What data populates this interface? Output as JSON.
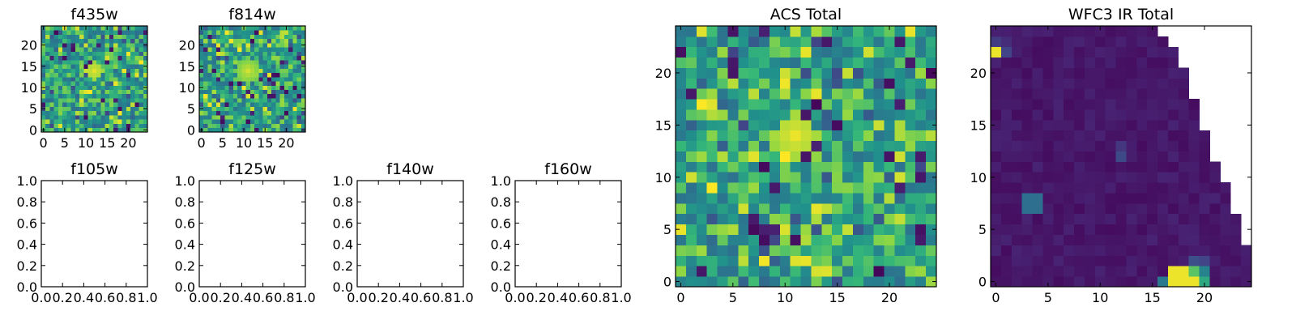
{
  "chart_data": [
    {
      "type": "heatmap",
      "title": "f435w",
      "colormap": "viridis",
      "grid_size": [
        25,
        25
      ],
      "xlim": [
        -0.5,
        24.5
      ],
      "ylim": [
        -0.5,
        24.5
      ],
      "x_ticks": [
        0,
        5,
        10,
        15,
        20
      ],
      "y_ticks": [
        0,
        5,
        10,
        15,
        20
      ],
      "x_tick_labels": [
        "0",
        "5",
        "10",
        "15",
        "20"
      ],
      "y_tick_labels": [
        "0",
        "5",
        "10",
        "15",
        "20"
      ],
      "value_range": [
        0,
        1
      ],
      "mean_value": 0.66,
      "blobs": [
        {
          "x": 12,
          "y": 14,
          "radius": 2,
          "value": 0.97
        }
      ],
      "noise_seed": 435
    },
    {
      "type": "heatmap",
      "title": "f814w",
      "colormap": "viridis",
      "grid_size": [
        25,
        25
      ],
      "xlim": [
        -0.5,
        24.5
      ],
      "ylim": [
        -0.5,
        24.5
      ],
      "x_ticks": [
        0,
        5,
        10,
        15,
        20
      ],
      "y_ticks": [
        0,
        5,
        10,
        15,
        20
      ],
      "x_tick_labels": [
        "0",
        "5",
        "10",
        "15",
        "20"
      ],
      "y_tick_labels": [
        "0",
        "5",
        "10",
        "15",
        "20"
      ],
      "value_range": [
        0,
        1
      ],
      "mean_value": 0.68,
      "blobs": [
        {
          "x": 11,
          "y": 14,
          "radius": 3,
          "value": 0.95
        }
      ],
      "noise_seed": 814
    },
    {
      "type": "empty",
      "title": "f105w",
      "xlim": [
        0,
        1
      ],
      "ylim": [
        0,
        1
      ],
      "x_ticks": [
        0,
        0.2,
        0.4,
        0.6,
        0.8,
        1.0
      ],
      "y_ticks": [
        0,
        0.2,
        0.4,
        0.6,
        0.8,
        1.0
      ],
      "x_tick_labels": [
        "0.0",
        "0.2",
        "0.4",
        "0.6",
        "0.8",
        "1.0"
      ],
      "y_tick_labels": [
        "0.0",
        "0.2",
        "0.4",
        "0.6",
        "0.8",
        "1.0"
      ]
    },
    {
      "type": "empty",
      "title": "f125w",
      "xlim": [
        0,
        1
      ],
      "ylim": [
        0,
        1
      ],
      "x_ticks": [
        0,
        0.2,
        0.4,
        0.6,
        0.8,
        1.0
      ],
      "y_ticks": [
        0,
        0.2,
        0.4,
        0.6,
        0.8,
        1.0
      ],
      "x_tick_labels": [
        "0.0",
        "0.2",
        "0.4",
        "0.6",
        "0.8",
        "1.0"
      ],
      "y_tick_labels": [
        "0.0",
        "0.2",
        "0.4",
        "0.6",
        "0.8",
        "1.0"
      ]
    },
    {
      "type": "empty",
      "title": "f140w",
      "xlim": [
        0,
        1
      ],
      "ylim": [
        0,
        1
      ],
      "x_ticks": [
        0,
        0.2,
        0.4,
        0.6,
        0.8,
        1.0
      ],
      "y_ticks": [
        0,
        0.2,
        0.4,
        0.6,
        0.8,
        1.0
      ],
      "x_tick_labels": [
        "0.0",
        "0.2",
        "0.4",
        "0.6",
        "0.8",
        "1.0"
      ],
      "y_tick_labels": [
        "0.0",
        "0.2",
        "0.4",
        "0.6",
        "0.8",
        "1.0"
      ]
    },
    {
      "type": "empty",
      "title": "f160w",
      "xlim": [
        0,
        1
      ],
      "ylim": [
        0,
        1
      ],
      "x_ticks": [
        0,
        0.2,
        0.4,
        0.6,
        0.8,
        1.0
      ],
      "y_ticks": [
        0,
        0.2,
        0.4,
        0.6,
        0.8,
        1.0
      ],
      "x_tick_labels": [
        "0.0",
        "0.2",
        "0.4",
        "0.6",
        "0.8",
        "1.0"
      ],
      "y_tick_labels": [
        "0.0",
        "0.2",
        "0.4",
        "0.6",
        "0.8",
        "1.0"
      ]
    },
    {
      "type": "heatmap",
      "title": "ACS Total",
      "colormap": "viridis",
      "grid_size": [
        25,
        25
      ],
      "xlim": [
        -0.5,
        24.5
      ],
      "ylim": [
        -0.5,
        24.5
      ],
      "x_ticks": [
        0,
        5,
        10,
        15,
        20
      ],
      "y_ticks": [
        0,
        5,
        10,
        15,
        20
      ],
      "x_tick_labels": [
        "0",
        "5",
        "10",
        "15",
        "20"
      ],
      "y_tick_labels": [
        "0",
        "5",
        "10",
        "15",
        "20"
      ],
      "value_range": [
        0,
        1
      ],
      "mean_value": 0.68,
      "blobs": [
        {
          "x": 11,
          "y": 14,
          "radius": 2,
          "value": 0.98
        }
      ],
      "noise_seed": 1234
    },
    {
      "type": "heatmap",
      "title": "WFC3 IR Total",
      "colormap": "viridis",
      "grid_size": [
        25,
        25
      ],
      "xlim": [
        -0.5,
        24.5
      ],
      "ylim": [
        -0.5,
        24.5
      ],
      "x_ticks": [
        0,
        5,
        10,
        15,
        20
      ],
      "y_ticks": [
        0,
        5,
        10,
        15,
        20
      ],
      "x_tick_labels": [
        "0",
        "5",
        "10",
        "15",
        "20"
      ],
      "y_tick_labels": [
        "0",
        "5",
        "10",
        "15",
        "20"
      ],
      "value_range": [
        0,
        1
      ],
      "mean_value": 0.08,
      "noise_amplitude": 0.04,
      "bright_cells": [
        {
          "x": 0,
          "y": 22,
          "value": 0.98
        },
        {
          "x": 0,
          "y": 23,
          "value": 0.22
        },
        {
          "x": 1,
          "y": 22,
          "value": 0.25
        },
        {
          "x": 1,
          "y": 23,
          "value": 0.16
        },
        {
          "x": 3,
          "y": 8,
          "value": 0.45
        },
        {
          "x": 4,
          "y": 8,
          "value": 0.45
        },
        {
          "x": 3,
          "y": 7,
          "value": 0.45
        },
        {
          "x": 4,
          "y": 7,
          "value": 0.45
        },
        {
          "x": 12,
          "y": 12,
          "value": 0.28
        },
        {
          "x": 12,
          "y": 13,
          "value": 0.2
        },
        {
          "x": 17,
          "y": 0,
          "value": 0.98
        },
        {
          "x": 18,
          "y": 0,
          "value": 0.98
        },
        {
          "x": 19,
          "y": 0,
          "value": 0.98
        },
        {
          "x": 17,
          "y": 1,
          "value": 0.98
        },
        {
          "x": 18,
          "y": 1,
          "value": 0.98
        },
        {
          "x": 19,
          "y": 1,
          "value": 0.8
        },
        {
          "x": 20,
          "y": 1,
          "value": 0.55
        },
        {
          "x": 20,
          "y": 0,
          "value": 0.7
        },
        {
          "x": 16,
          "y": 0,
          "value": 0.5
        },
        {
          "x": 19,
          "y": 2,
          "value": 0.3
        },
        {
          "x": 20,
          "y": 2,
          "value": 0.25
        }
      ],
      "masked_boundary_row_last_column": [
        24,
        24,
        24,
        24,
        23,
        23,
        23,
        22,
        22,
        22,
        21,
        21,
        20,
        20,
        20,
        19,
        19,
        19,
        18,
        18,
        18,
        17,
        17,
        16,
        15
      ],
      "noise_seed": 99
    }
  ]
}
